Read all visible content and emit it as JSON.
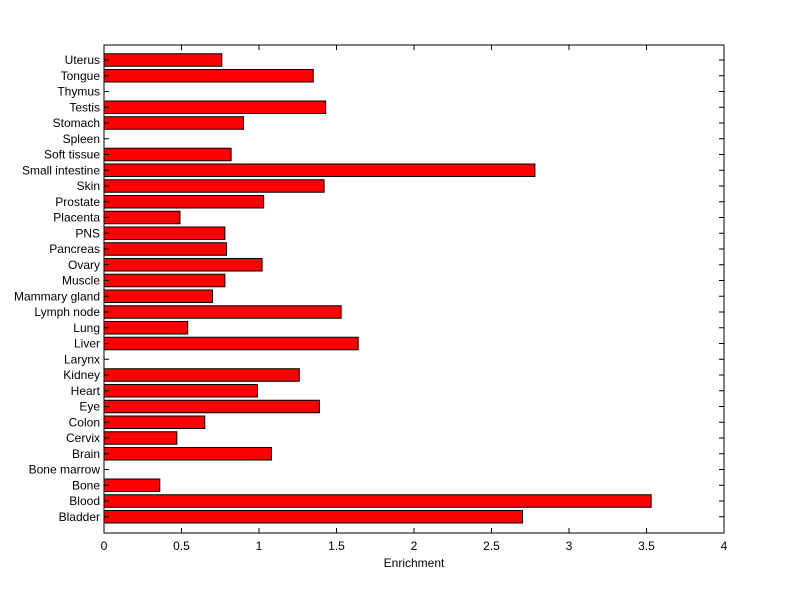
{
  "chart_data": {
    "type": "bar",
    "orientation": "horizontal",
    "categories": [
      "Uterus",
      "Tongue",
      "Thymus",
      "Testis",
      "Stomach",
      "Spleen",
      "Soft tissue",
      "Small intestine",
      "Skin",
      "Prostate",
      "Placenta",
      "PNS",
      "Pancreas",
      "Ovary",
      "Muscle",
      "Mammary gland",
      "Lymph node",
      "Lung",
      "Liver",
      "Larynx",
      "Kidney",
      "Heart",
      "Eye",
      "Colon",
      "Cervix",
      "Brain",
      "Bone marrow",
      "Bone",
      "Blood",
      "Bladder"
    ],
    "values": [
      0.76,
      1.35,
      0,
      1.43,
      0.9,
      0,
      0.82,
      2.78,
      1.42,
      1.03,
      0.49,
      0.78,
      0.79,
      1.02,
      0.78,
      0.7,
      1.53,
      0.54,
      1.64,
      0,
      1.26,
      0.99,
      1.39,
      0.65,
      0.47,
      1.08,
      0,
      0.36,
      3.53,
      2.7
    ],
    "xlabel": "Enrichment",
    "ylabel": "",
    "title": "",
    "xlim": [
      0,
      4
    ],
    "xticks": [
      "0",
      "0.5",
      "1",
      "1.5",
      "2",
      "2.5",
      "3",
      "3.5",
      "4"
    ],
    "grid": false,
    "colors": {
      "bar_fill": "#ff0000",
      "bar_stroke": "#000000",
      "axis": "#000000"
    }
  }
}
